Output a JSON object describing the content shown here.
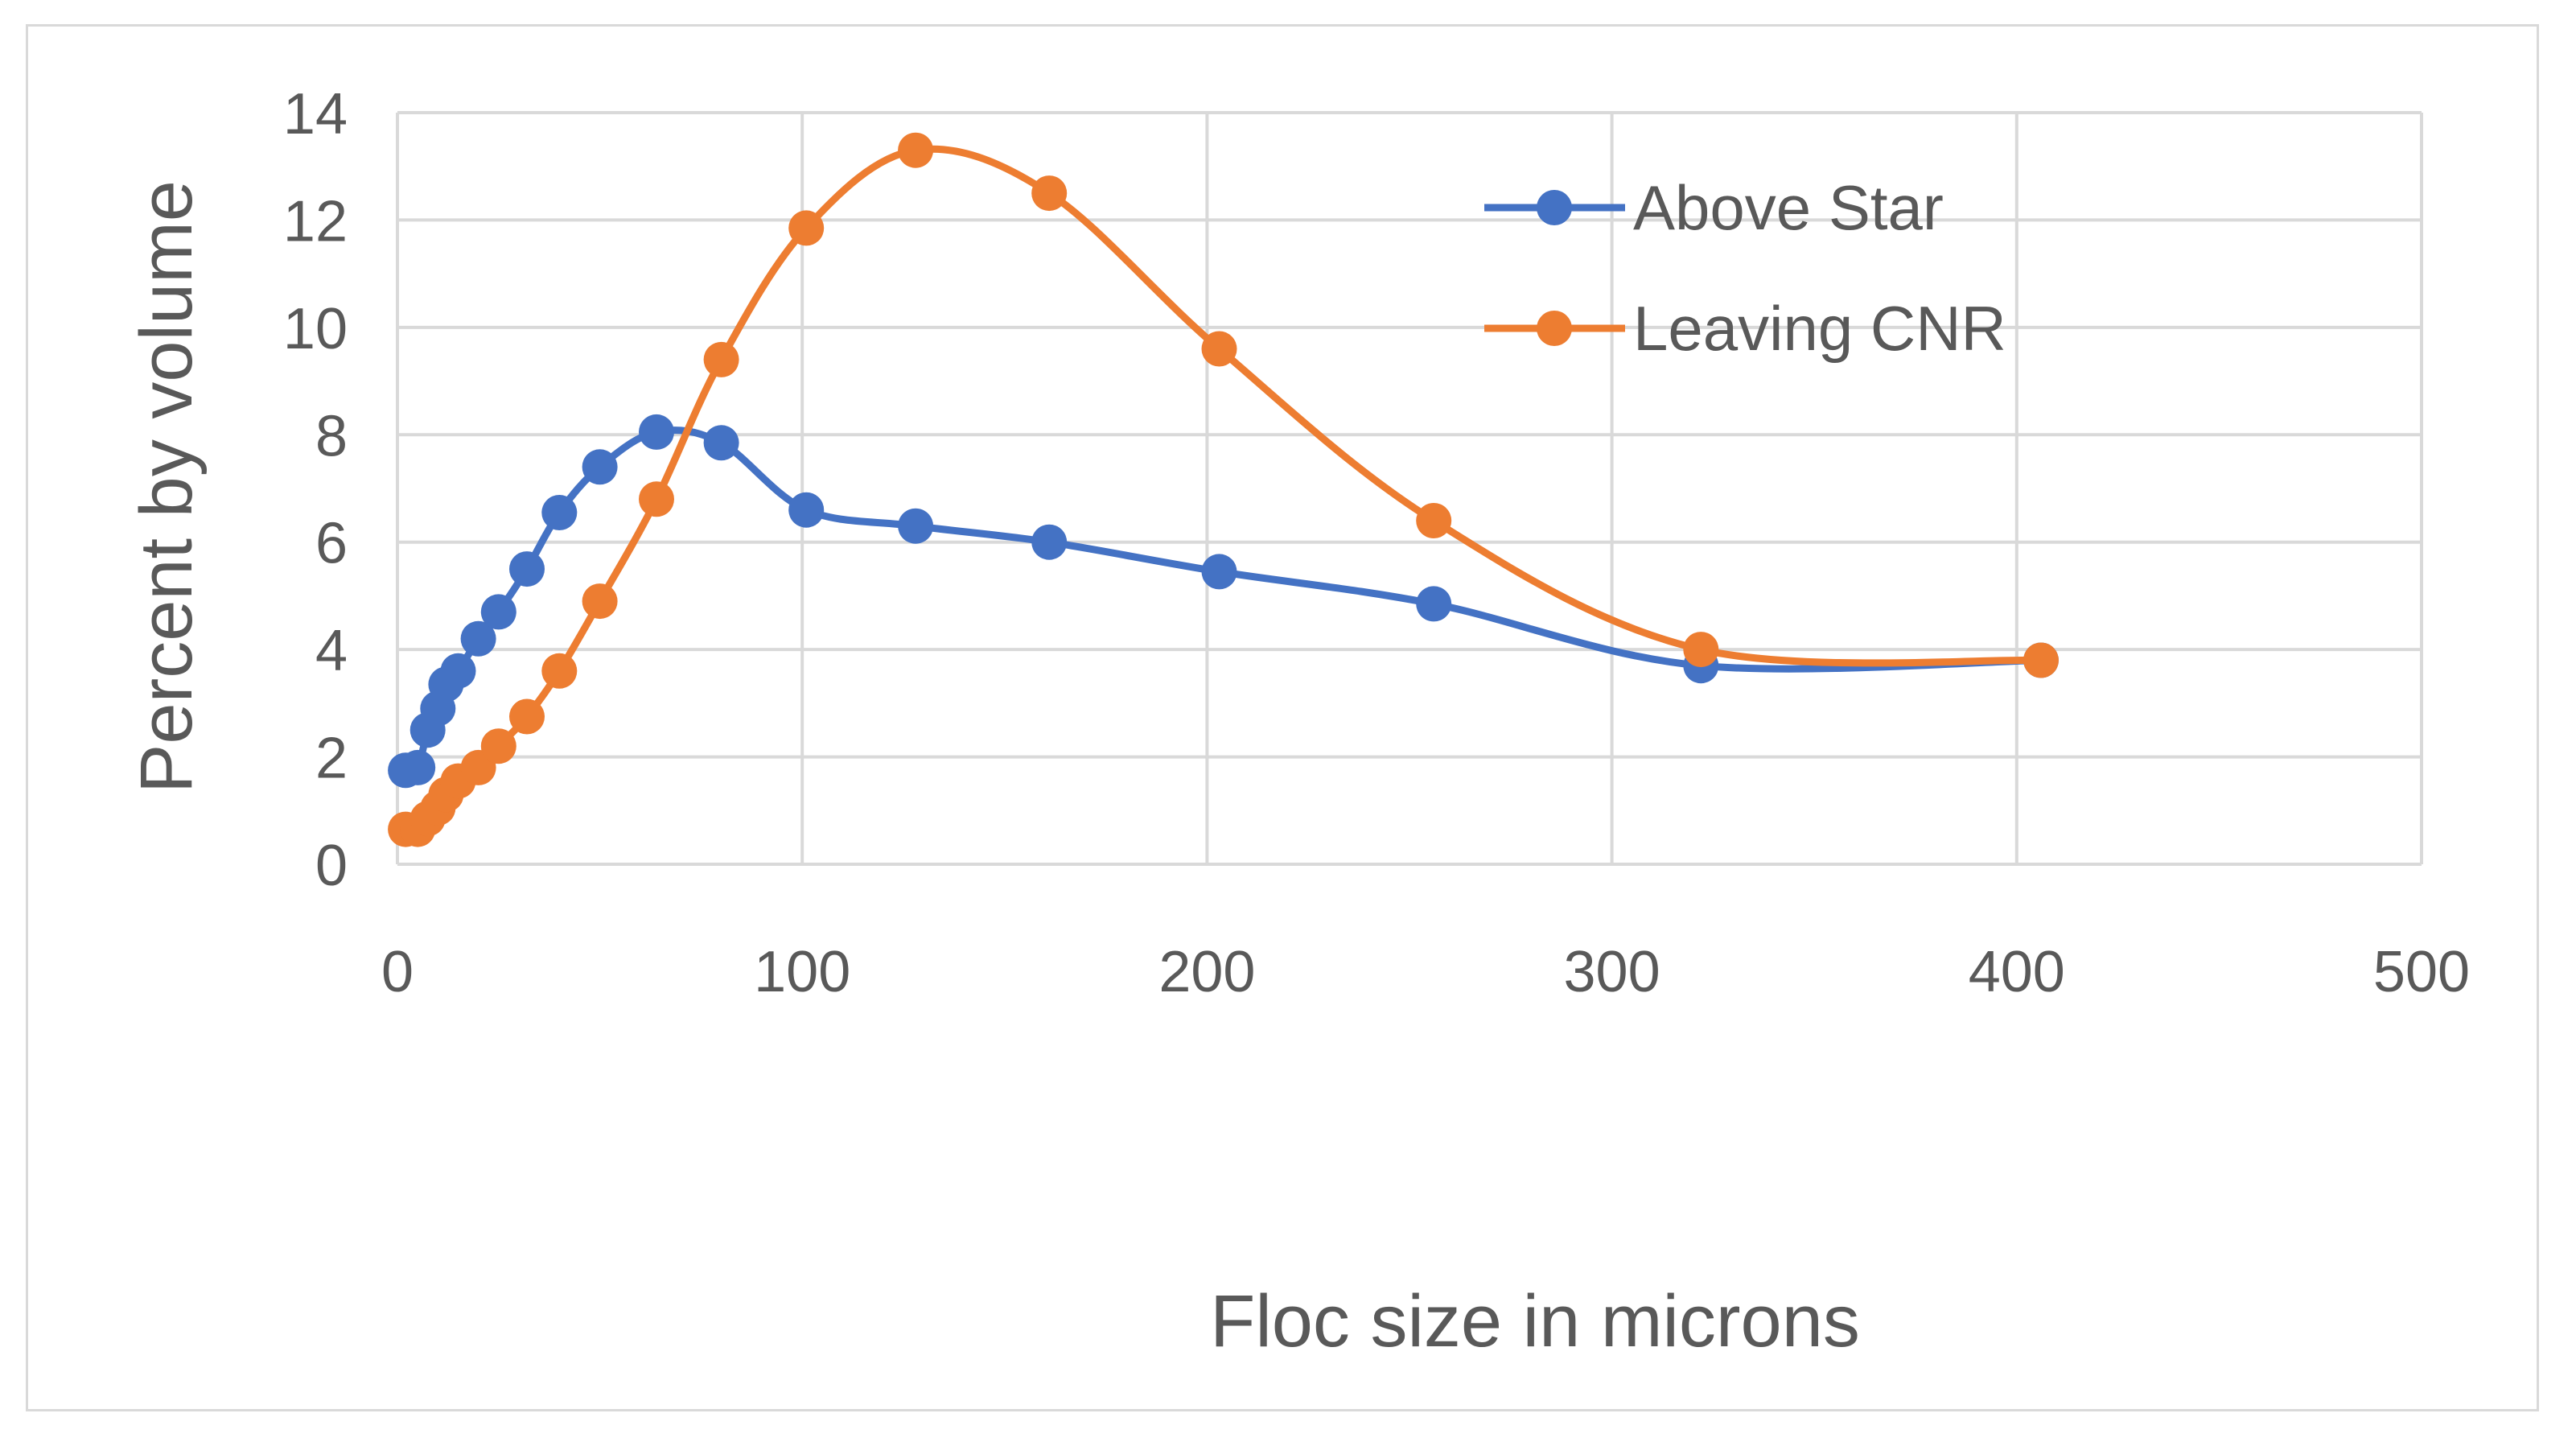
{
  "chart_data": {
    "type": "scatter",
    "title": "",
    "xlabel": "Floc size in microns",
    "ylabel": "Percent by volume",
    "xlim": [
      0,
      500
    ],
    "ylim": [
      0,
      14
    ],
    "xticks": [
      0,
      100,
      200,
      300,
      400,
      500
    ],
    "yticks": [
      0,
      2,
      4,
      6,
      8,
      10,
      12,
      14
    ],
    "grid": true,
    "legend_position": "top-right",
    "smooth_lines": true,
    "series": [
      {
        "name": "Above Star",
        "color": "#4472c4",
        "x": [
          2,
          5,
          7.5,
          10,
          12,
          15,
          20,
          25,
          32,
          40,
          50,
          64,
          80,
          101,
          128,
          161,
          203,
          256,
          322,
          406
        ],
        "y": [
          1.75,
          1.8,
          2.5,
          2.9,
          3.35,
          3.6,
          4.2,
          4.7,
          5.5,
          6.55,
          7.4,
          8.05,
          7.85,
          6.6,
          6.3,
          6.0,
          5.45,
          4.85,
          3.7,
          3.8
        ]
      },
      {
        "name": "Leaving CNR",
        "color": "#ed7d31",
        "x": [
          2,
          5,
          7.5,
          10,
          12,
          15,
          20,
          25,
          32,
          40,
          50,
          64,
          80,
          101,
          128,
          161,
          203,
          256,
          322,
          406
        ],
        "y": [
          0.65,
          0.65,
          0.85,
          1.05,
          1.3,
          1.55,
          1.8,
          2.2,
          2.75,
          3.6,
          4.9,
          6.8,
          9.4,
          11.85,
          13.3,
          12.5,
          9.6,
          6.4,
          4.0,
          3.8
        ]
      }
    ]
  }
}
